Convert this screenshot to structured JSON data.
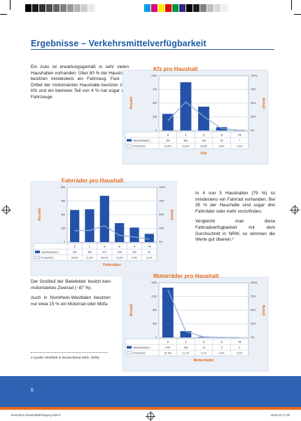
{
  "page": {
    "headline": "Ergebnisse – Verkehrsmittelverfügbarkeit",
    "page_number": "6",
    "slug_left": "Broschüre Haushaltsbefragung.indd 6",
    "slug_right": "19.05.11 17:30"
  },
  "paragraphs": {
    "kfz": "Ein Auto ist erwartungsgemäß in sehr vielen Haushalten vorhanden. Über 80 % der Haushalte besitzen mindestens ein Fahrzeug. Fast ein Drittel der motorisierten Haushalte besitzen zwei Kfz und ein kleinerer Teil von 4 % hat sogar drei Fahrzeuge.",
    "rad1": "In 4 von 5 Haushalten (79 %) ist mindestens ein Fahrrad vorhanden. Bei 35 % der Haushalte sind sogar drei Fahrräder oder mehr vorzufinden.",
    "rad2": "Vergleicht man diese Fahrradverfügbarkeit mit dem Durchschnitt in NRW, so stimmen die Werte gut überein.²",
    "moto1": "Der Großteil der Bielefelder besitzt kein motorisiertes Zweirad (~87 %).",
    "moto2": "Auch in Nordrhein-Westfalen besitzen nur etwa 15 % ein Motorrad oder Mofa."
  },
  "footnote": "2 Quelle: Mobilität in Deutschland (MiD, 2008)",
  "colors": {
    "accent": "#1e5aa8",
    "orange": "#e46b1e",
    "bar": "#2452a8",
    "line": "#8fb0d0",
    "chart_bg": "#eaf0f6",
    "legend_bg": "#dde6f0"
  },
  "colorbar": [
    "#ffffff",
    "#000000",
    "#1a1a1a",
    "#333333",
    "#4d4d4d",
    "#666666",
    "#808080",
    "#999999",
    "#b3b3b3",
    "#cccccc",
    "#e6e6e6",
    "#ffffff",
    "#ffffff",
    "#ffffff",
    "#ffffff",
    "#ffffff",
    "#ffffff",
    "#ffffff",
    "#00a0e3",
    "#e5007e",
    "#ffed00",
    "#e30613",
    "#009640",
    "#312783",
    "#000000",
    "#1d1d1b",
    "#7f7f7f",
    "#bfbfbf",
    "#dadada",
    "#f0f0f0"
  ],
  "chart_data": [
    {
      "type": "bar",
      "title": "Kfz pro Haushalt",
      "xlabel": "Kfz",
      "ylabel": "Anzahl",
      "ylabel_right": "Anteil",
      "categories": [
        "0",
        "1",
        "2",
        "3",
        ">3"
      ],
      "values": [
        304,
        882,
        436,
        60,
        7
      ],
      "ylim": [
        0,
        1000
      ],
      "yticks": [
        "0",
        "250",
        "500",
        "750",
        "1000"
      ],
      "yticks_right": [
        "0%",
        "25%",
        "50%",
        "75%",
        "100%"
      ],
      "series": [
        {
          "name": "Haushalte(abs.)",
          "values": [
            "304",
            "882",
            "436",
            "60",
            "7"
          ]
        },
        {
          "name": "Prozent(%)",
          "values": [
            "18,0%",
            "52,2%",
            "25,8%",
            "3,6%",
            "0,4%"
          ],
          "percent": [
            18.0,
            52.2,
            25.8,
            3.6,
            0.4
          ]
        }
      ],
      "grid": true,
      "legend": "table-below"
    },
    {
      "type": "bar",
      "title": "Fahrräder pro Haushalt",
      "xlabel": "Fahrräder",
      "ylabel": "Anzahl",
      "ylabel_right": "Anteil",
      "categories": [
        "0",
        "1",
        "2",
        "3",
        "4",
        ">4"
      ],
      "values": [
        352,
        360,
        507,
        208,
        159,
        90
      ],
      "ylim": [
        0,
        600
      ],
      "yticks": [
        "0",
        "150",
        "300",
        "450",
        "600"
      ],
      "yticks_right": [
        "0%",
        "25%",
        "50%",
        "75%",
        "100%"
      ],
      "series": [
        {
          "name": "Haushalte(abs.)",
          "values": [
            "352",
            "360",
            "507",
            "208",
            "159",
            "90"
          ]
        },
        {
          "name": "Prozent(%)",
          "values": [
            "20,8%",
            "21,3%",
            "30,0%",
            "12,3%",
            "9,4%",
            "5,3%"
          ],
          "percent": [
            20.8,
            21.3,
            30.0,
            12.3,
            9.4,
            5.3
          ]
        }
      ],
      "grid": true,
      "legend": "table-below"
    },
    {
      "type": "bar",
      "title": "Motorräder pro Haushalt",
      "xlabel": "Motorräder",
      "ylabel": "Anzahl",
      "ylabel_right": "Anteil",
      "categories": [
        "0",
        "1",
        "2",
        "3",
        ">3"
      ],
      "values": [
        1457,
        186,
        19,
        5,
        0
      ],
      "ylim": [
        0,
        1600
      ],
      "yticks": [
        "0",
        "400",
        "800",
        "1200",
        "1600"
      ],
      "yticks_right": [
        "0%",
        "25%",
        "50%",
        "75%",
        "100%"
      ],
      "series": [
        {
          "name": "Haushalte(abs.)",
          "values": [
            "1457",
            "186",
            "19",
            "5",
            "0"
          ]
        },
        {
          "name": "Prozent(%)",
          "values": [
            "87,4%",
            "11,1%",
            "1,1%",
            "0,3%",
            "0,0%"
          ],
          "percent": [
            87.4,
            11.1,
            1.1,
            0.3,
            0.0
          ]
        }
      ],
      "grid": true,
      "legend": "table-below"
    }
  ]
}
